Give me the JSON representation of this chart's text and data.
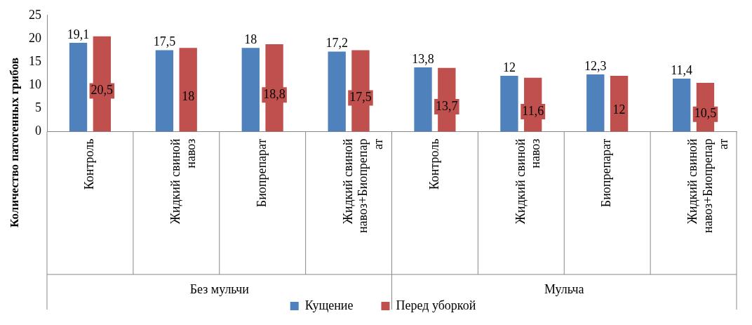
{
  "chart_data": {
    "type": "bar",
    "ylabel": "Количество патогенных грибов",
    "categories": [
      "Контроль",
      "Жидкий свиной навоз",
      "Биопрепарат",
      "Жидкий свиной навоз+Биопрепарат",
      "Контроль",
      "Жидкий свиной навоз",
      "Биопрепарат",
      "Жидкий свиной навоз+Биопрепарат"
    ],
    "series": [
      {
        "name": "Кущение",
        "color": "#4f81bd",
        "values": [
          19.1,
          17.5,
          18,
          17.2,
          13.8,
          12,
          12.3,
          11.4
        ],
        "value_labels": [
          "19,1",
          "17,5",
          "18",
          "17,2",
          "13,8",
          "12",
          "12,3",
          "11,4"
        ]
      },
      {
        "name": "Перед уборкой",
        "color": "#c0504d",
        "values": [
          20.5,
          18,
          18.8,
          17.5,
          13.7,
          11.6,
          12,
          10.5
        ],
        "value_labels": [
          "20,5",
          "18",
          "18,8",
          "17,5",
          "13,7",
          "11,6",
          "12",
          "10,5"
        ]
      }
    ],
    "ylim": [
      0,
      25
    ],
    "yticks": [
      0,
      5,
      10,
      15,
      20,
      25
    ],
    "grid": false,
    "legend": "bottom",
    "annotations": [
      "Без мульчи",
      "Мульча"
    ]
  }
}
